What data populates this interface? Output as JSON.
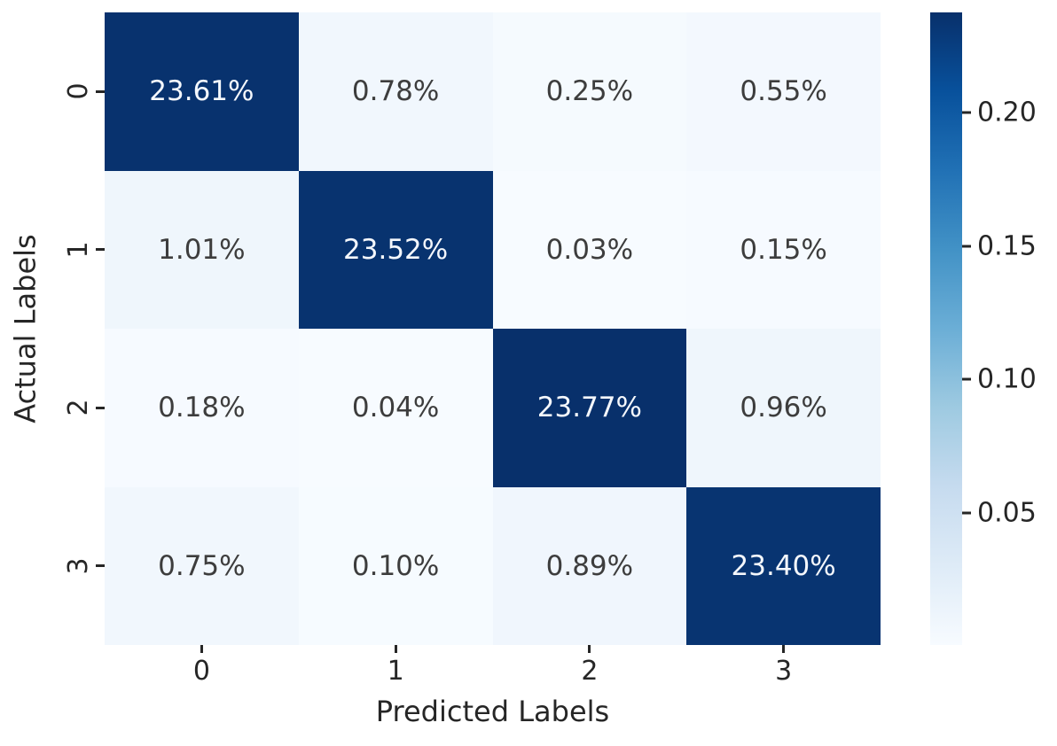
{
  "figure": {
    "background": "#ffffff"
  },
  "chart_data": {
    "type": "heatmap",
    "title": "",
    "xlabel": "Predicted Labels",
    "ylabel": "Actual Labels",
    "x_tick_labels": [
      "0",
      "1",
      "2",
      "3"
    ],
    "y_tick_labels": [
      "0",
      "1",
      "2",
      "3"
    ],
    "cell_labels": [
      [
        "23.61%",
        "0.78%",
        "0.25%",
        "0.55%"
      ],
      [
        "1.01%",
        "23.52%",
        "0.03%",
        "0.15%"
      ],
      [
        "0.18%",
        "0.04%",
        "23.77%",
        "0.96%"
      ],
      [
        "0.75%",
        "0.10%",
        "0.89%",
        "23.40%"
      ]
    ],
    "values": [
      [
        0.2361,
        0.0078,
        0.0025,
        0.0055
      ],
      [
        0.0101,
        0.2352,
        0.0003,
        0.0015
      ],
      [
        0.0018,
        0.0004,
        0.2377,
        0.0096
      ],
      [
        0.0075,
        0.001,
        0.0089,
        0.234
      ]
    ],
    "vmin": 0.0003,
    "vmax": 0.2377,
    "grid": false,
    "legend_position": "right-colorbar",
    "colorbar": {
      "tick_labels": [
        "0.20",
        "0.15",
        "0.10",
        "0.05"
      ],
      "tick_values": [
        0.2,
        0.15,
        0.1,
        0.05
      ]
    },
    "colormap": {
      "name": "Blues",
      "stops": [
        "#f7fbff",
        "#deebf7",
        "#c6dbef",
        "#9ecae1",
        "#6baed6",
        "#4292c6",
        "#2171b5",
        "#08519c",
        "#08306b"
      ]
    },
    "text_colors": {
      "on_dark": "#f4f7fc",
      "on_light": "#3d3d3d",
      "axis_text": "#262626"
    }
  }
}
